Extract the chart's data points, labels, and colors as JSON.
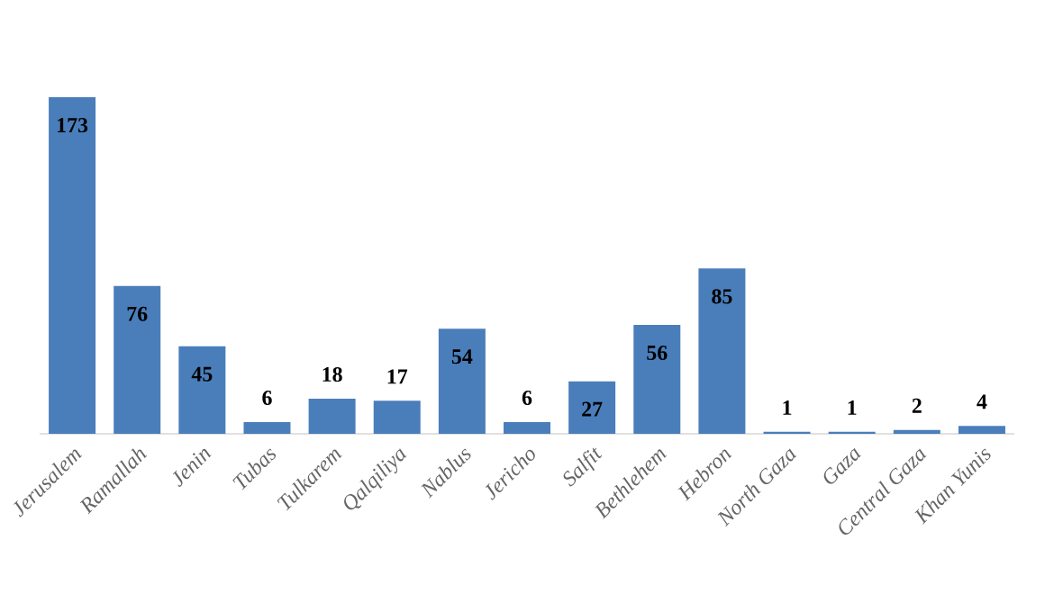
{
  "chart_data": {
    "type": "bar",
    "categories": [
      "Jerusalem",
      "Ramallah",
      "Jenin",
      "Tubas",
      "Tulkarem",
      "Qalqiliya",
      "Nablus",
      "Jericho",
      "Salfit",
      "Bethlehem",
      "Hebron",
      "North Gaza",
      "Gaza",
      "Central Gaza",
      "Khan Yunis"
    ],
    "values": [
      173,
      76,
      45,
      6,
      18,
      17,
      54,
      6,
      27,
      56,
      85,
      1,
      1,
      2,
      4
    ],
    "color": "#4a7ebb",
    "data_labels": true
  }
}
